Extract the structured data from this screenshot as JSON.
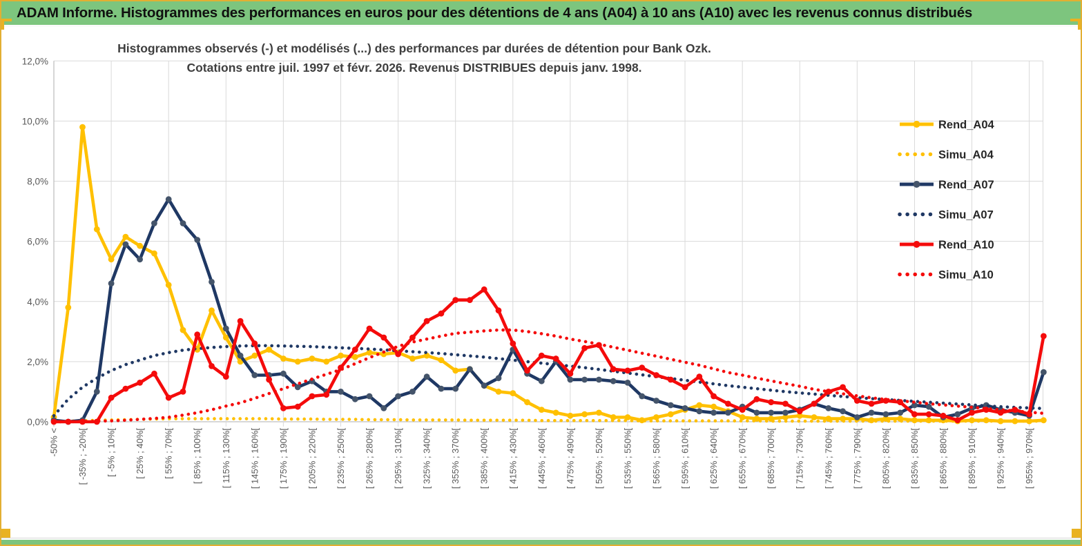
{
  "window": {
    "title": "ADAM Informe. Histogrammes des performances en euros pour des détentions de 4 ans (A04) à 10 ans (A10) avec les revenus connus distribués"
  },
  "colors": {
    "header_green": "#7DC57E",
    "selection_gold": "#E9B222",
    "grid": "#D9D9D9",
    "axis": "#BFBFBF",
    "tick_text": "#595959",
    "title_text": "#3F3F3F",
    "legend_text": "#262626",
    "series_gold": "#FFC000",
    "series_navy": "#1F3864",
    "series_navy_marker": "#44546A",
    "series_red": "#F40B0B"
  },
  "chart_data": {
    "type": "line",
    "title_line1": "Histogrammes observés (-) et modélisés (...) des performances par durées de détention pour Bank Ozk.",
    "title_line2": "Cotations entre juil. 1997 et févr. 2026. Revenus DISTRIBUES depuis janv. 1998.",
    "ylim": [
      0,
      12
    ],
    "grid": true,
    "legend_position": "right",
    "ytick_labels": [
      "12,0%",
      "10,0%",
      "8,0%",
      "6,0%",
      "4,0%",
      "2,0%",
      "0,0%"
    ],
    "xtick_labels": [
      "-50% <",
      "[ -35% ; -20%[",
      "[ -5% ; 10%[",
      "[ 25% ; 40%[",
      "[ 55% ; 70%[",
      "[ 85% ; 100%[",
      "[ 115% ; 130%[",
      "[ 145% ; 160%[",
      "[ 175% ; 190%[",
      "[ 205% ; 220%[",
      "[ 235% ; 250%[",
      "[ 265% ; 280%[",
      "[ 295% ; 310%[",
      "[ 325% ; 340%[",
      "[ 355% ; 370%[",
      "[ 385% ; 400%[",
      "[ 415% ; 430%[",
      "[ 445% ; 460%[",
      "[ 475% ; 490%[",
      "[ 505% ; 520%[",
      "[ 535% ; 550%[",
      "[ 565% ; 580%[",
      "[ 595% ; 610%[",
      "[ 625% ; 640%[",
      "[ 655% ; 670%[",
      "[ 685% ; 700%[",
      "[ 715% ; 730%[",
      "[ 745% ; 760%[",
      "[ 775% ; 790%[",
      "[ 805% ; 820%[",
      "[ 835% ; 850%[",
      "[ 865% ; 880%[",
      "[ 895% ; 910%[",
      "[ 925% ; 940%[",
      "[ 955% ; 970%["
    ],
    "bins_per_label": 2,
    "series": [
      {
        "name": "Rend_A04",
        "style": "solid",
        "color": "#FFC000",
        "marker_color": "#FFC000",
        "values": [
          0.15,
          3.8,
          9.8,
          6.4,
          5.4,
          6.15,
          5.85,
          5.6,
          4.55,
          3.05,
          2.4,
          3.7,
          2.8,
          2.0,
          2.2,
          2.4,
          2.1,
          2.0,
          2.1,
          2.0,
          2.2,
          2.15,
          2.3,
          2.25,
          2.3,
          2.1,
          2.2,
          2.05,
          1.7,
          1.75,
          1.2,
          1.0,
          0.95,
          0.65,
          0.4,
          0.3,
          0.2,
          0.25,
          0.3,
          0.15,
          0.15,
          0.05,
          0.15,
          0.25,
          0.4,
          0.55,
          0.5,
          0.35,
          0.15,
          0.1,
          0.1,
          0.15,
          0.2,
          0.15,
          0.1,
          0.1,
          0.1,
          0.05,
          0.1,
          0.1,
          0.05,
          0.05,
          0.05,
          0.02,
          0.05,
          0.05,
          0.02,
          0.02,
          0.02,
          0.05
        ]
      },
      {
        "name": "Simu_A04",
        "style": "dotted",
        "color": "#FFC000",
        "values": [
          0.01,
          0.02,
          0.03,
          0.05,
          0.06,
          0.07,
          0.08,
          0.09,
          0.1,
          0.1,
          0.1,
          0.1,
          0.1,
          0.1,
          0.1,
          0.1,
          0.09,
          0.09,
          0.09,
          0.08,
          0.08,
          0.08,
          0.07,
          0.07,
          0.07,
          0.06,
          0.06,
          0.06,
          0.06,
          0.05,
          0.05,
          0.05,
          0.05,
          0.05,
          0.04,
          0.04,
          0.04,
          0.04,
          0.04,
          0.04,
          0.04,
          0.03,
          0.03,
          0.03,
          0.03,
          0.03,
          0.03,
          0.03,
          0.03,
          0.03,
          0.02,
          0.02,
          0.02,
          0.02,
          0.02,
          0.02,
          0.02,
          0.02,
          0.02,
          0.02,
          0.02,
          0.02,
          0.02,
          0.02,
          0.02,
          0.02,
          0.02,
          0.02,
          0.02,
          0.02
        ]
      },
      {
        "name": "Rend_A07",
        "style": "solid",
        "color": "#1F3864",
        "marker_color": "#44546A",
        "values": [
          0.05,
          0.0,
          0.05,
          1.0,
          4.6,
          5.9,
          5.4,
          6.6,
          7.4,
          6.6,
          6.05,
          4.65,
          3.1,
          2.2,
          1.55,
          1.55,
          1.6,
          1.15,
          1.35,
          1.0,
          1.0,
          0.75,
          0.85,
          0.45,
          0.85,
          1.0,
          1.5,
          1.1,
          1.1,
          1.75,
          1.2,
          1.45,
          2.4,
          1.6,
          1.35,
          2.0,
          1.4,
          1.4,
          1.4,
          1.35,
          1.3,
          0.85,
          0.7,
          0.55,
          0.45,
          0.35,
          0.3,
          0.3,
          0.5,
          0.3,
          0.3,
          0.3,
          0.4,
          0.6,
          0.45,
          0.35,
          0.15,
          0.3,
          0.25,
          0.3,
          0.55,
          0.5,
          0.15,
          0.25,
          0.45,
          0.55,
          0.4,
          0.3,
          0.2,
          1.65
        ]
      },
      {
        "name": "Simu_A07",
        "style": "dotted",
        "color": "#1F3864",
        "values": [
          0.2,
          0.75,
          1.15,
          1.45,
          1.7,
          1.9,
          2.05,
          2.2,
          2.3,
          2.38,
          2.43,
          2.47,
          2.5,
          2.52,
          2.53,
          2.53,
          2.52,
          2.51,
          2.5,
          2.48,
          2.46,
          2.44,
          2.42,
          2.39,
          2.36,
          2.33,
          2.3,
          2.27,
          2.23,
          2.19,
          2.15,
          2.1,
          2.05,
          2.0,
          1.95,
          1.9,
          1.85,
          1.8,
          1.74,
          1.68,
          1.62,
          1.56,
          1.5,
          1.44,
          1.38,
          1.32,
          1.26,
          1.2,
          1.15,
          1.1,
          1.05,
          1.0,
          0.96,
          0.92,
          0.88,
          0.84,
          0.8,
          0.77,
          0.74,
          0.71,
          0.68,
          0.65,
          0.62,
          0.59,
          0.56,
          0.53,
          0.5,
          0.48,
          0.46,
          0.44
        ]
      },
      {
        "name": "Rend_A10",
        "style": "solid",
        "color": "#F40B0B",
        "marker_color": "#F40B0B",
        "values": [
          0.0,
          0.0,
          0.0,
          0.0,
          0.8,
          1.1,
          1.3,
          1.6,
          0.8,
          1.0,
          2.9,
          1.85,
          1.5,
          3.35,
          2.6,
          1.4,
          0.45,
          0.5,
          0.85,
          0.9,
          1.8,
          2.4,
          3.1,
          2.8,
          2.25,
          2.8,
          3.35,
          3.6,
          4.05,
          4.05,
          4.4,
          3.7,
          2.6,
          1.7,
          2.2,
          2.1,
          1.6,
          2.45,
          2.55,
          1.75,
          1.7,
          1.8,
          1.55,
          1.4,
          1.15,
          1.5,
          0.85,
          0.6,
          0.4,
          0.75,
          0.65,
          0.6,
          0.35,
          0.6,
          1.0,
          1.15,
          0.7,
          0.6,
          0.7,
          0.65,
          0.25,
          0.25,
          0.2,
          0.05,
          0.3,
          0.4,
          0.3,
          0.4,
          0.25,
          2.85
        ]
      },
      {
        "name": "Simu_A10",
        "style": "dotted",
        "color": "#F40B0B",
        "values": [
          0.0,
          0.0,
          0.01,
          0.02,
          0.03,
          0.05,
          0.08,
          0.11,
          0.15,
          0.22,
          0.3,
          0.4,
          0.52,
          0.63,
          0.78,
          0.94,
          1.1,
          1.26,
          1.42,
          1.58,
          1.73,
          1.93,
          2.13,
          2.32,
          2.51,
          2.65,
          2.75,
          2.85,
          2.94,
          2.98,
          3.02,
          3.05,
          3.05,
          3.0,
          2.93,
          2.85,
          2.75,
          2.67,
          2.58,
          2.48,
          2.38,
          2.28,
          2.18,
          2.08,
          1.98,
          1.88,
          1.76,
          1.64,
          1.55,
          1.45,
          1.36,
          1.27,
          1.18,
          1.08,
          1.0,
          0.93,
          0.86,
          0.8,
          0.74,
          0.7,
          0.65,
          0.6,
          0.56,
          0.52,
          0.48,
          0.44,
          0.4,
          0.36,
          0.32,
          0.28
        ]
      }
    ]
  }
}
